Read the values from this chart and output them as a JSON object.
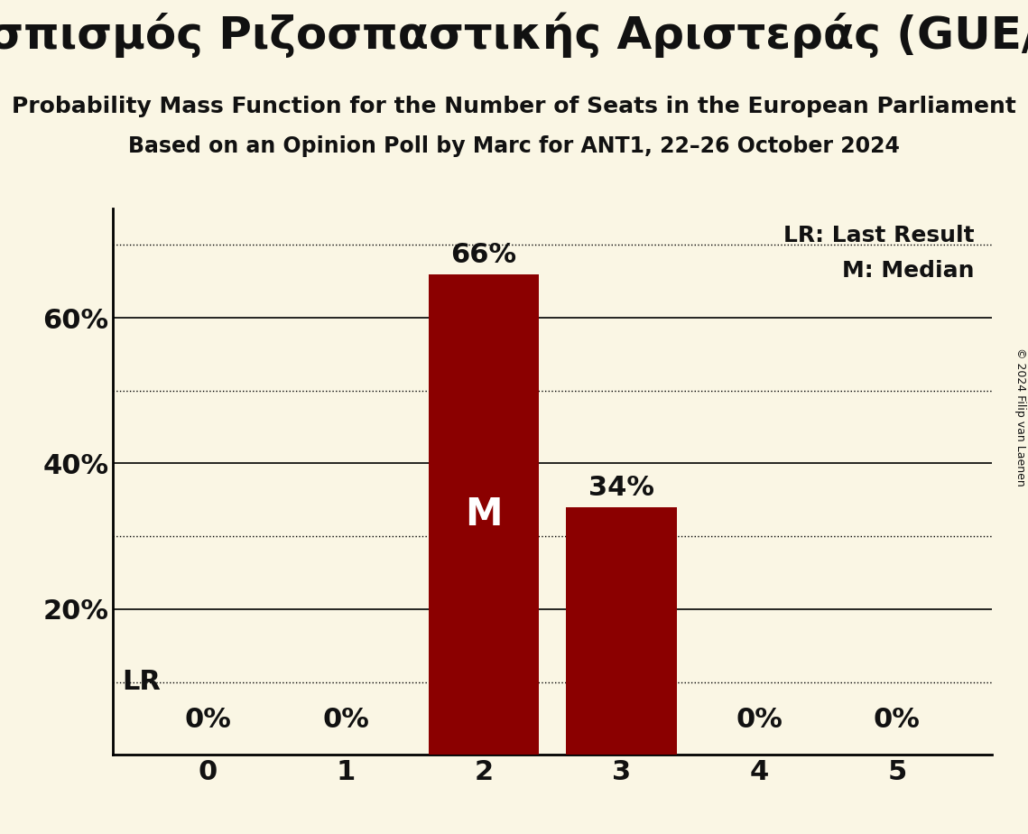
{
  "title": "Συνασπισμός Ριζοσπαστικής Αριστεράς (GUE/NGL)",
  "subtitle": "Probability Mass Function for the Number of Seats in the European Parliament",
  "subsubtitle": "Based on an Opinion Poll by Marc for ANT1, 22–26 October 2024",
  "copyright": "© 2024 Filip van Laenen",
  "categories": [
    0,
    1,
    2,
    3,
    4,
    5
  ],
  "values": [
    0.0,
    0.0,
    0.66,
    0.34,
    0.0,
    0.0
  ],
  "bar_color": "#8b0000",
  "background_color": "#faf6e4",
  "text_color": "#111111",
  "ylim": [
    0,
    0.75
  ],
  "yticks": [
    0.2,
    0.4,
    0.6
  ],
  "ytick_labels": [
    "20%",
    "40%",
    "60%"
  ],
  "solid_gridlines": [
    0.2,
    0.4,
    0.6
  ],
  "dotted_gridlines": [
    0.1,
    0.3,
    0.5,
    0.7
  ],
  "lr_value": 0.1,
  "lr_label": "LR",
  "median_seat": 2,
  "median_label": "M",
  "legend_lr": "LR: Last Result",
  "legend_m": "M: Median",
  "bar_labels": [
    "0%",
    "0%",
    "66%",
    "34%",
    "0%",
    "0%"
  ],
  "title_fontsize": 36,
  "subtitle_fontsize": 18,
  "subsubtitle_fontsize": 17,
  "axis_fontsize": 22,
  "bar_label_fontsize": 22,
  "median_fontsize": 30,
  "legend_fontsize": 18,
  "copyright_fontsize": 9
}
